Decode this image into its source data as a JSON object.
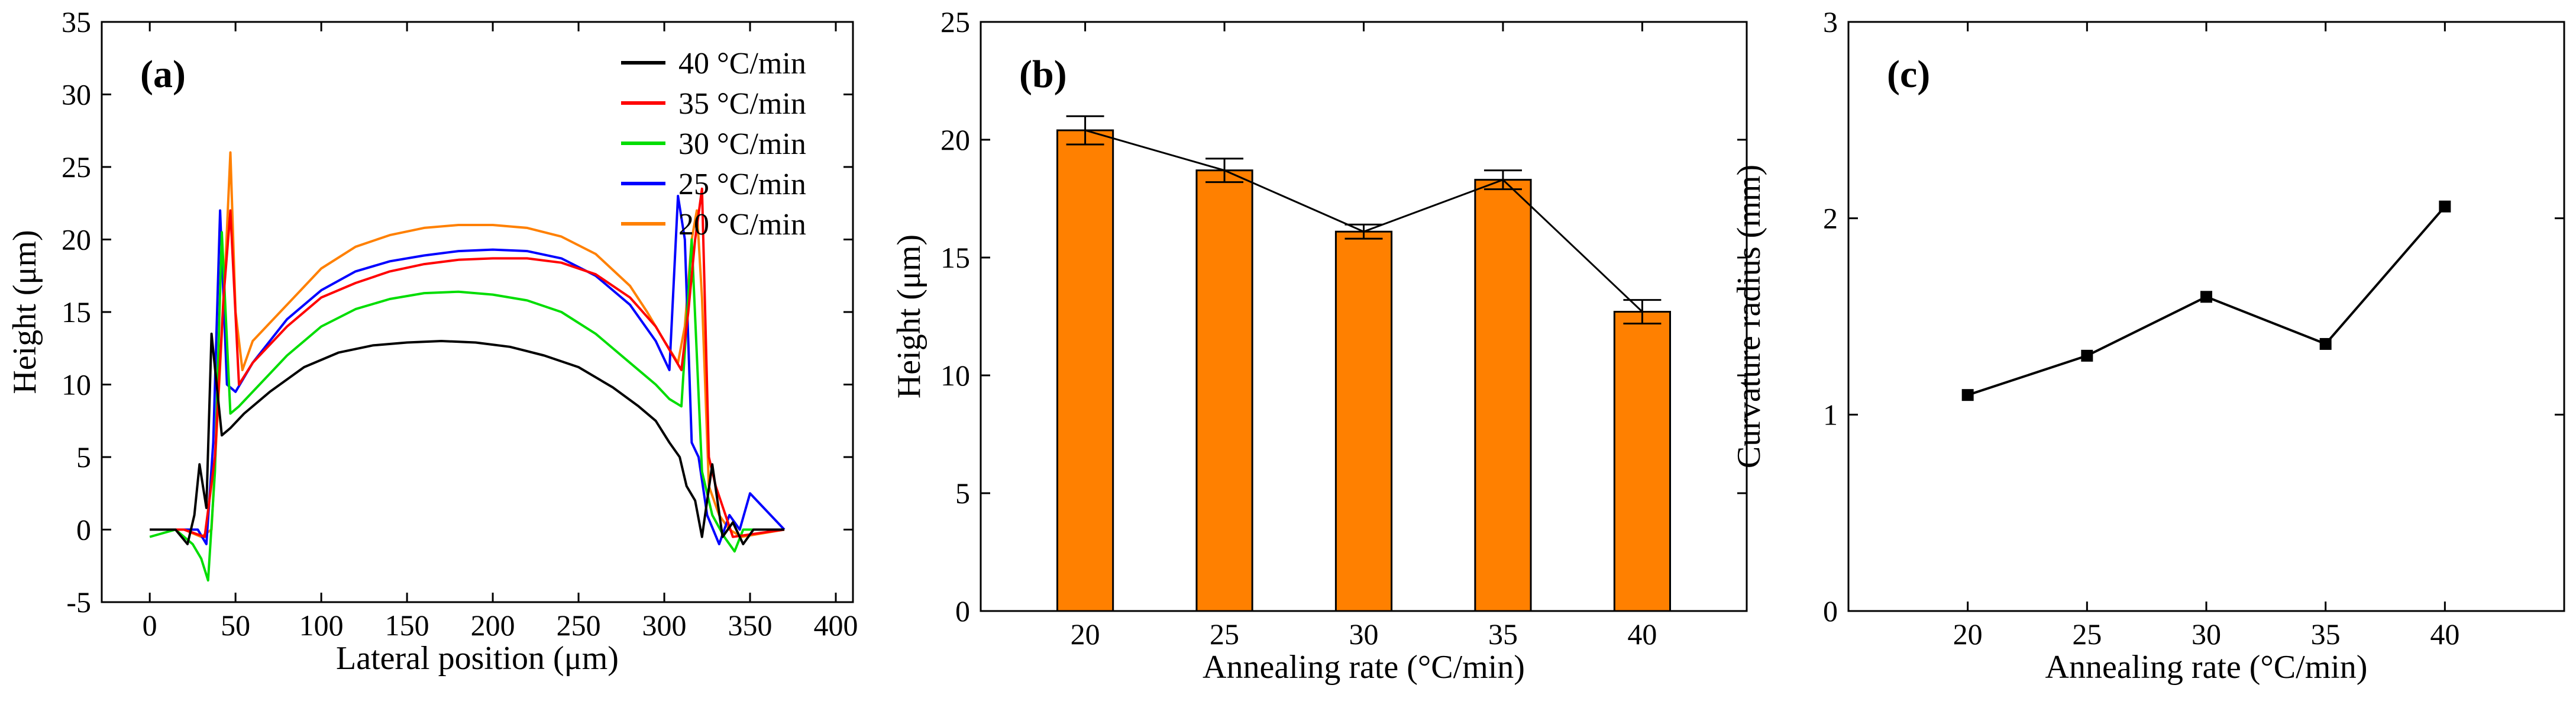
{
  "chart_data": [
    {
      "type": "line",
      "panel_label": "(a)",
      "xlabel": "Lateral position (μm)",
      "ylabel": "Height (μm)",
      "xlim": [
        -28,
        410
      ],
      "ylim": [
        -5,
        35
      ],
      "xticks": [
        0,
        50,
        100,
        150,
        200,
        250,
        300,
        350,
        400
      ],
      "yticks": [
        -5,
        0,
        5,
        10,
        15,
        20,
        25,
        30,
        35
      ],
      "legend_position": "top-right",
      "series": [
        {
          "name": "40 °C/min",
          "color": "#000000",
          "x": [
            0,
            15,
            22,
            26,
            29,
            33,
            36,
            42,
            47,
            55,
            70,
            90,
            110,
            130,
            150,
            170,
            190,
            210,
            230,
            250,
            270,
            285,
            295,
            303,
            309,
            313,
            318,
            322,
            328,
            334,
            340,
            346,
            352,
            370
          ],
          "y": [
            0,
            0,
            -1,
            1,
            4.5,
            1.5,
            13.5,
            6.5,
            7,
            8,
            9.5,
            11.2,
            12.2,
            12.7,
            12.9,
            13,
            12.9,
            12.6,
            12,
            11.2,
            9.8,
            8.5,
            7.5,
            6,
            5,
            3,
            2,
            -0.5,
            4.5,
            -0.5,
            0.5,
            -1,
            0,
            0
          ]
        },
        {
          "name": "35 °C/min",
          "color": "#ff0000",
          "x": [
            0,
            20,
            32,
            38,
            43,
            47,
            52,
            60,
            80,
            100,
            120,
            140,
            160,
            180,
            200,
            220,
            240,
            260,
            280,
            295,
            305,
            310,
            314,
            318,
            322,
            326,
            330,
            340,
            370
          ],
          "y": [
            0,
            0,
            -0.5,
            5,
            16,
            22,
            10,
            11.5,
            14,
            16,
            17,
            17.8,
            18.3,
            18.6,
            18.7,
            18.7,
            18.4,
            17.6,
            16,
            14,
            12,
            11,
            15,
            20,
            23.5,
            5,
            3,
            -0.5,
            0
          ]
        },
        {
          "name": "30 °C/min",
          "color": "#00dd00",
          "x": [
            0,
            15,
            25,
            30,
            34,
            38,
            42,
            47,
            52,
            60,
            80,
            100,
            120,
            140,
            160,
            180,
            200,
            220,
            240,
            260,
            280,
            295,
            303,
            310,
            316,
            322,
            328,
            335,
            341,
            346,
            370
          ],
          "y": [
            -0.5,
            0,
            -1,
            -2,
            -3.5,
            4,
            20.5,
            8,
            8.5,
            9.5,
            12,
            14,
            15.2,
            15.9,
            16.3,
            16.4,
            16.2,
            15.8,
            15,
            13.5,
            11.5,
            10,
            9,
            8.5,
            20,
            4,
            1,
            -0.5,
            -1.5,
            0,
            0
          ]
        },
        {
          "name": "25 °C/min",
          "color": "#0000ff",
          "x": [
            0,
            20,
            28,
            33,
            37,
            41,
            45,
            50,
            60,
            80,
            100,
            120,
            140,
            160,
            180,
            200,
            220,
            240,
            260,
            280,
            295,
            303,
            308,
            312,
            316,
            320,
            325,
            332,
            338,
            344,
            350,
            370
          ],
          "y": [
            0,
            0,
            0,
            -1,
            6,
            22,
            10,
            9.5,
            11.5,
            14.5,
            16.5,
            17.8,
            18.5,
            18.9,
            19.2,
            19.3,
            19.2,
            18.7,
            17.5,
            15.5,
            13,
            11,
            23,
            20,
            6,
            5,
            1,
            -1,
            1,
            0,
            2.5,
            0
          ]
        },
        {
          "name": "20 °C/min",
          "color": "#ff8000",
          "x": [
            0,
            20,
            30,
            36,
            40,
            44,
            47,
            50,
            54,
            60,
            80,
            100,
            120,
            140,
            160,
            180,
            200,
            220,
            240,
            260,
            280,
            290,
            300,
            308,
            312,
            316,
            319,
            322,
            326,
            332,
            338,
            345,
            370
          ],
          "y": [
            0,
            0,
            -0.5,
            0,
            9,
            18,
            26,
            15,
            11,
            13,
            15.5,
            18,
            19.5,
            20.3,
            20.8,
            21,
            21,
            20.8,
            20.2,
            19,
            16.8,
            15,
            13,
            11.5,
            14,
            20,
            22,
            16,
            3,
            1,
            0,
            -0.5,
            0
          ]
        }
      ]
    },
    {
      "type": "bar",
      "panel_label": "(b)",
      "xlabel": "Annealing rate (°C/min)",
      "ylabel": "Height (μm)",
      "ylim": [
        0,
        25
      ],
      "yticks": [
        0,
        5,
        10,
        15,
        20,
        25
      ],
      "categories": [
        "20",
        "25",
        "30",
        "35",
        "40"
      ],
      "values": [
        20.4,
        18.7,
        16.1,
        18.3,
        12.7
      ],
      "errors": [
        0.6,
        0.5,
        0.3,
        0.4,
        0.5
      ],
      "bar_color": "#ff8000",
      "connecting_line": true
    },
    {
      "type": "line",
      "panel_label": "(c)",
      "xlabel": "Annealing rate (°C/min)",
      "ylabel": "Curvature radius (mm)",
      "xlim": [
        15,
        45
      ],
      "ylim": [
        0,
        3
      ],
      "xticks": [
        20,
        25,
        30,
        35,
        40
      ],
      "yticks": [
        0,
        1,
        2,
        3
      ],
      "series": [
        {
          "name": "Curvature radius",
          "color": "#000000",
          "marker": "square",
          "x": [
            20,
            25,
            30,
            35,
            40
          ],
          "y": [
            1.1,
            1.3,
            1.6,
            1.36,
            2.06
          ]
        }
      ]
    }
  ]
}
